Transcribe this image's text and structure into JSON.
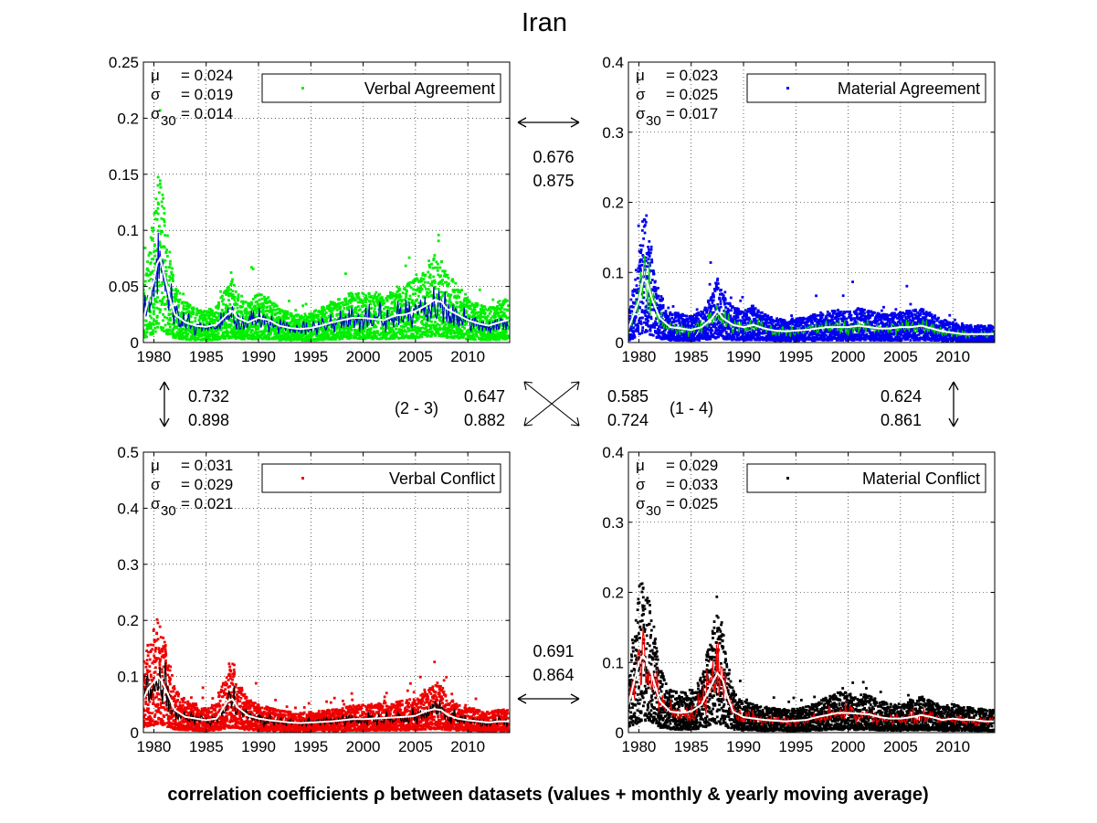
{
  "figure": {
    "title": "Iran",
    "caption": "correlation coefficients ρ between datasets (values + monthly & yearly moving average)"
  },
  "colors": {
    "moving_average_30": "#ffffff"
  },
  "chart_data": [
    {
      "type": "scatter",
      "id": "verbal-agreement",
      "legend": "Verbal Agreement",
      "legend_placement": "top-right",
      "marker_color": "#00ee00",
      "monthly_line_color": "#0000cc",
      "x_ticks": [
        1980,
        1985,
        1990,
        1995,
        2000,
        2005,
        2010
      ],
      "xlim": [
        1979,
        2014
      ],
      "ylim": [
        0,
        0.25
      ],
      "y_ticks": [
        "0",
        "0.05",
        "0.1",
        "0.15",
        "0.2",
        "0.25"
      ],
      "y_tick_values": [
        0,
        0.05,
        0.1,
        0.15,
        0.2,
        0.25
      ],
      "grid": true,
      "stats": {
        "mu": "= 0.024",
        "sigma": "= 0.019",
        "sigma30": "= 0.014"
      },
      "yearly_average": {
        "x": [
          1979.0,
          1979.5,
          1980.0,
          1980.3,
          1980.6,
          1981.0,
          1981.5,
          1982.0,
          1983.0,
          1984.0,
          1985.0,
          1986.0,
          1987.0,
          1987.5,
          1988.0,
          1989.0,
          1990.0,
          1991.0,
          1992.0,
          1993.0,
          1994.0,
          1995.0,
          1996.0,
          1997.0,
          1998.0,
          1999.0,
          2000.0,
          2001.0,
          2002.0,
          2003.0,
          2004.0,
          2005.0,
          2006.0,
          2006.8,
          2007.5,
          2008.0,
          2009.0,
          2010.0,
          2011.0,
          2012.0,
          2013.0,
          2013.8
        ],
        "y": [
          0.02,
          0.04,
          0.055,
          0.07,
          0.075,
          0.06,
          0.04,
          0.025,
          0.018,
          0.015,
          0.014,
          0.016,
          0.025,
          0.028,
          0.022,
          0.018,
          0.022,
          0.02,
          0.015,
          0.013,
          0.012,
          0.013,
          0.015,
          0.018,
          0.02,
          0.022,
          0.022,
          0.021,
          0.02,
          0.024,
          0.025,
          0.028,
          0.033,
          0.038,
          0.036,
          0.03,
          0.025,
          0.02,
          0.017,
          0.015,
          0.018,
          0.02
        ]
      }
    },
    {
      "type": "scatter",
      "id": "material-agreement",
      "legend": "Material Agreement",
      "legend_placement": "top-right",
      "marker_color": "#0000ee",
      "monthly_line_color": "#00cc00",
      "x_ticks": [
        1980,
        1985,
        1990,
        1995,
        2000,
        2005,
        2010
      ],
      "xlim": [
        1979,
        2014
      ],
      "ylim": [
        0,
        0.4
      ],
      "y_ticks": [
        "0",
        "0.1",
        "0.2",
        "0.3",
        "0.4"
      ],
      "y_tick_values": [
        0,
        0.1,
        0.2,
        0.3,
        0.4
      ],
      "grid": true,
      "stats": {
        "mu": "= 0.023",
        "sigma": "= 0.025",
        "sigma30": "= 0.017"
      },
      "yearly_average": {
        "x": [
          1979.0,
          1979.5,
          1980.0,
          1980.4,
          1980.8,
          1981.3,
          1982.0,
          1983.0,
          1984.0,
          1985.0,
          1986.0,
          1987.0,
          1987.5,
          1988.0,
          1989.0,
          1990.0,
          1991.0,
          1992.0,
          1993.0,
          1994.0,
          1995.0,
          1996.0,
          1997.0,
          1998.0,
          1999.0,
          2000.0,
          2001.0,
          2002.0,
          2003.0,
          2004.0,
          2005.0,
          2006.0,
          2007.0,
          2008.0,
          2009.0,
          2010.0,
          2011.0,
          2012.0,
          2013.0,
          2013.8
        ],
        "y": [
          0.02,
          0.04,
          0.06,
          0.09,
          0.085,
          0.06,
          0.035,
          0.022,
          0.02,
          0.018,
          0.022,
          0.035,
          0.045,
          0.035,
          0.025,
          0.022,
          0.025,
          0.02,
          0.017,
          0.016,
          0.017,
          0.018,
          0.02,
          0.022,
          0.022,
          0.022,
          0.024,
          0.022,
          0.02,
          0.02,
          0.022,
          0.022,
          0.024,
          0.02,
          0.016,
          0.014,
          0.012,
          0.012,
          0.012,
          0.012
        ]
      }
    },
    {
      "type": "scatter",
      "id": "verbal-conflict",
      "legend": "Verbal Conflict",
      "legend_placement": "top-right",
      "marker_color": "#ee0000",
      "monthly_line_color": "#000000",
      "x_ticks": [
        1980,
        1985,
        1990,
        1995,
        2000,
        2005,
        2010
      ],
      "xlim": [
        1979,
        2014
      ],
      "ylim": [
        0,
        0.5
      ],
      "y_ticks": [
        "0",
        "0.1",
        "0.2",
        "0.3",
        "0.4",
        "0.5"
      ],
      "y_tick_values": [
        0,
        0.1,
        0.2,
        0.3,
        0.4,
        0.5
      ],
      "grid": true,
      "stats": {
        "mu": "= 0.031",
        "sigma": "= 0.029",
        "sigma30": "= 0.021"
      },
      "yearly_average": {
        "x": [
          1979.0,
          1979.5,
          1980.0,
          1980.4,
          1980.8,
          1981.3,
          1982.0,
          1983.0,
          1984.0,
          1985.0,
          1986.0,
          1987.0,
          1987.5,
          1988.0,
          1989.0,
          1990.0,
          1991.0,
          1992.0,
          1993.0,
          1994.0,
          1995.0,
          1996.0,
          1997.0,
          1998.0,
          1999.0,
          2000.0,
          2001.0,
          2002.0,
          2003.0,
          2004.0,
          2005.0,
          2006.0,
          2006.8,
          2007.5,
          2008.0,
          2009.0,
          2010.0,
          2011.0,
          2012.0,
          2013.0,
          2013.8
        ],
        "y": [
          0.06,
          0.08,
          0.09,
          0.1,
          0.09,
          0.07,
          0.04,
          0.028,
          0.025,
          0.022,
          0.025,
          0.055,
          0.06,
          0.045,
          0.03,
          0.025,
          0.022,
          0.02,
          0.018,
          0.017,
          0.018,
          0.019,
          0.02,
          0.022,
          0.024,
          0.024,
          0.025,
          0.026,
          0.027,
          0.028,
          0.03,
          0.038,
          0.042,
          0.04,
          0.032,
          0.025,
          0.022,
          0.02,
          0.018,
          0.02,
          0.02
        ]
      }
    },
    {
      "type": "scatter",
      "id": "material-conflict",
      "legend": "Material Conflict",
      "legend_placement": "top-right",
      "marker_color": "#000000",
      "monthly_line_color": "#ee0000",
      "x_ticks": [
        1980,
        1985,
        1990,
        1995,
        2000,
        2005,
        2010
      ],
      "xlim": [
        1979,
        2014
      ],
      "ylim": [
        0,
        0.4
      ],
      "y_ticks": [
        "0",
        "0.1",
        "0.2",
        "0.3",
        "0.4"
      ],
      "y_tick_values": [
        0,
        0.1,
        0.2,
        0.3,
        0.4
      ],
      "grid": true,
      "stats": {
        "mu": "= 0.029",
        "sigma": "= 0.033",
        "sigma30": "= 0.025"
      },
      "yearly_average": {
        "x": [
          1979.0,
          1979.5,
          1980.0,
          1980.4,
          1980.8,
          1981.3,
          1982.0,
          1983.0,
          1984.0,
          1985.0,
          1986.0,
          1987.0,
          1987.5,
          1988.0,
          1988.5,
          1989.0,
          1990.0,
          1991.0,
          1992.0,
          1993.0,
          1994.0,
          1995.0,
          1996.0,
          1997.0,
          1998.0,
          1999.0,
          2000.0,
          2001.0,
          2002.0,
          2003.0,
          2004.0,
          2005.0,
          2006.0,
          2007.0,
          2008.0,
          2009.0,
          2010.0,
          2011.0,
          2012.0,
          2013.0,
          2013.8
        ],
        "y": [
          0.04,
          0.07,
          0.1,
          0.11,
          0.1,
          0.08,
          0.045,
          0.03,
          0.028,
          0.03,
          0.04,
          0.07,
          0.085,
          0.075,
          0.05,
          0.03,
          0.022,
          0.02,
          0.018,
          0.017,
          0.016,
          0.017,
          0.018,
          0.022,
          0.025,
          0.028,
          0.028,
          0.027,
          0.026,
          0.022,
          0.02,
          0.02,
          0.022,
          0.025,
          0.022,
          0.018,
          0.02,
          0.018,
          0.018,
          0.016,
          0.016
        ]
      }
    }
  ],
  "correlations": {
    "pair_1_2": {
      "yearly": "0.676",
      "monthly": "0.875"
    },
    "pair_1_3": {
      "yearly": "0.732",
      "monthly": "0.898"
    },
    "pair_2_3": {
      "label": "(2 - 3)",
      "yearly": "0.647",
      "monthly": "0.882"
    },
    "pair_1_4": {
      "label": "(1 - 4)",
      "yearly": "0.585",
      "monthly": "0.724"
    },
    "pair_2_4": {
      "yearly": "0.624",
      "monthly": "0.861"
    },
    "pair_3_4": {
      "yearly": "0.691",
      "monthly": "0.864"
    }
  }
}
